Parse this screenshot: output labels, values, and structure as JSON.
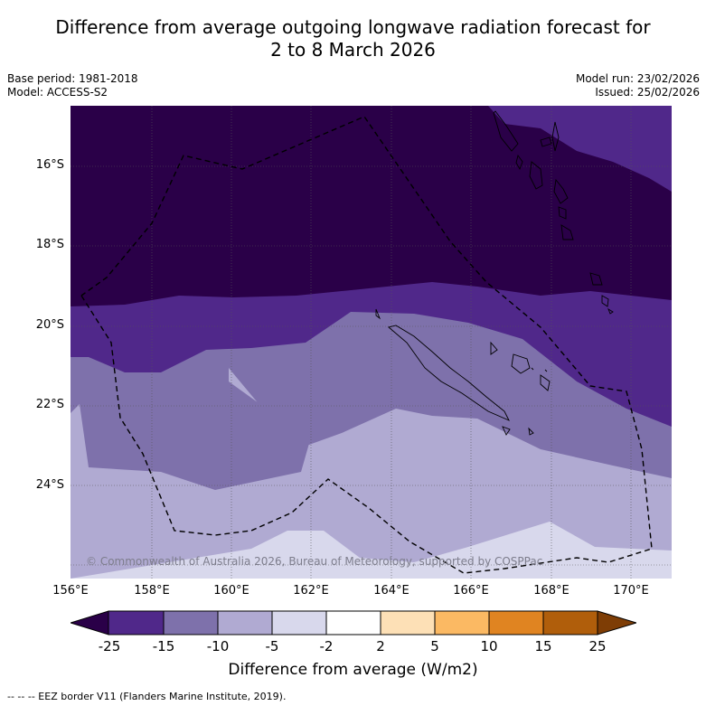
{
  "header": {
    "title_line1": "Difference from average outgoing longwave radiation forecast for",
    "title_line2": "2 to 8 March 2026",
    "base_period": "Base period: 1981-2018",
    "model": "Model: ACCESS-S2",
    "model_run": "Model run: 23/02/2026",
    "issued": "Issued: 25/02/2026"
  },
  "map": {
    "lat_labels": [
      "16°S",
      "18°S",
      "20°S",
      "22°S",
      "24°S"
    ],
    "lon_labels": [
      "156°E",
      "158°E",
      "160°E",
      "162°E",
      "164°E",
      "166°E",
      "168°E",
      "170°E"
    ],
    "copyright": "© Commonwealth of Australia 2026, Bureau of Meteorology, supported by COSPPac",
    "colors": [
      "#2a0048",
      "#50288a",
      "#7e71ab",
      "#b0aad2",
      "#d8d8ec"
    ]
  },
  "colorbar": {
    "ticks": [
      "-25",
      "-15",
      "-10",
      "-5",
      "-2",
      "2",
      "5",
      "10",
      "15",
      "25"
    ],
    "colors": [
      "#2a0048",
      "#50288a",
      "#7e71ab",
      "#b0aad2",
      "#d8d8ec",
      "#ffffff",
      "#fde0b6",
      "#fbb963",
      "#e08421",
      "#b05e0b",
      "#7e3d05"
    ],
    "label": "Difference from average (W/m2)"
  },
  "footnote": "--  --  -- EEZ border V11 (Flanders Marine Institute, 2019)."
}
